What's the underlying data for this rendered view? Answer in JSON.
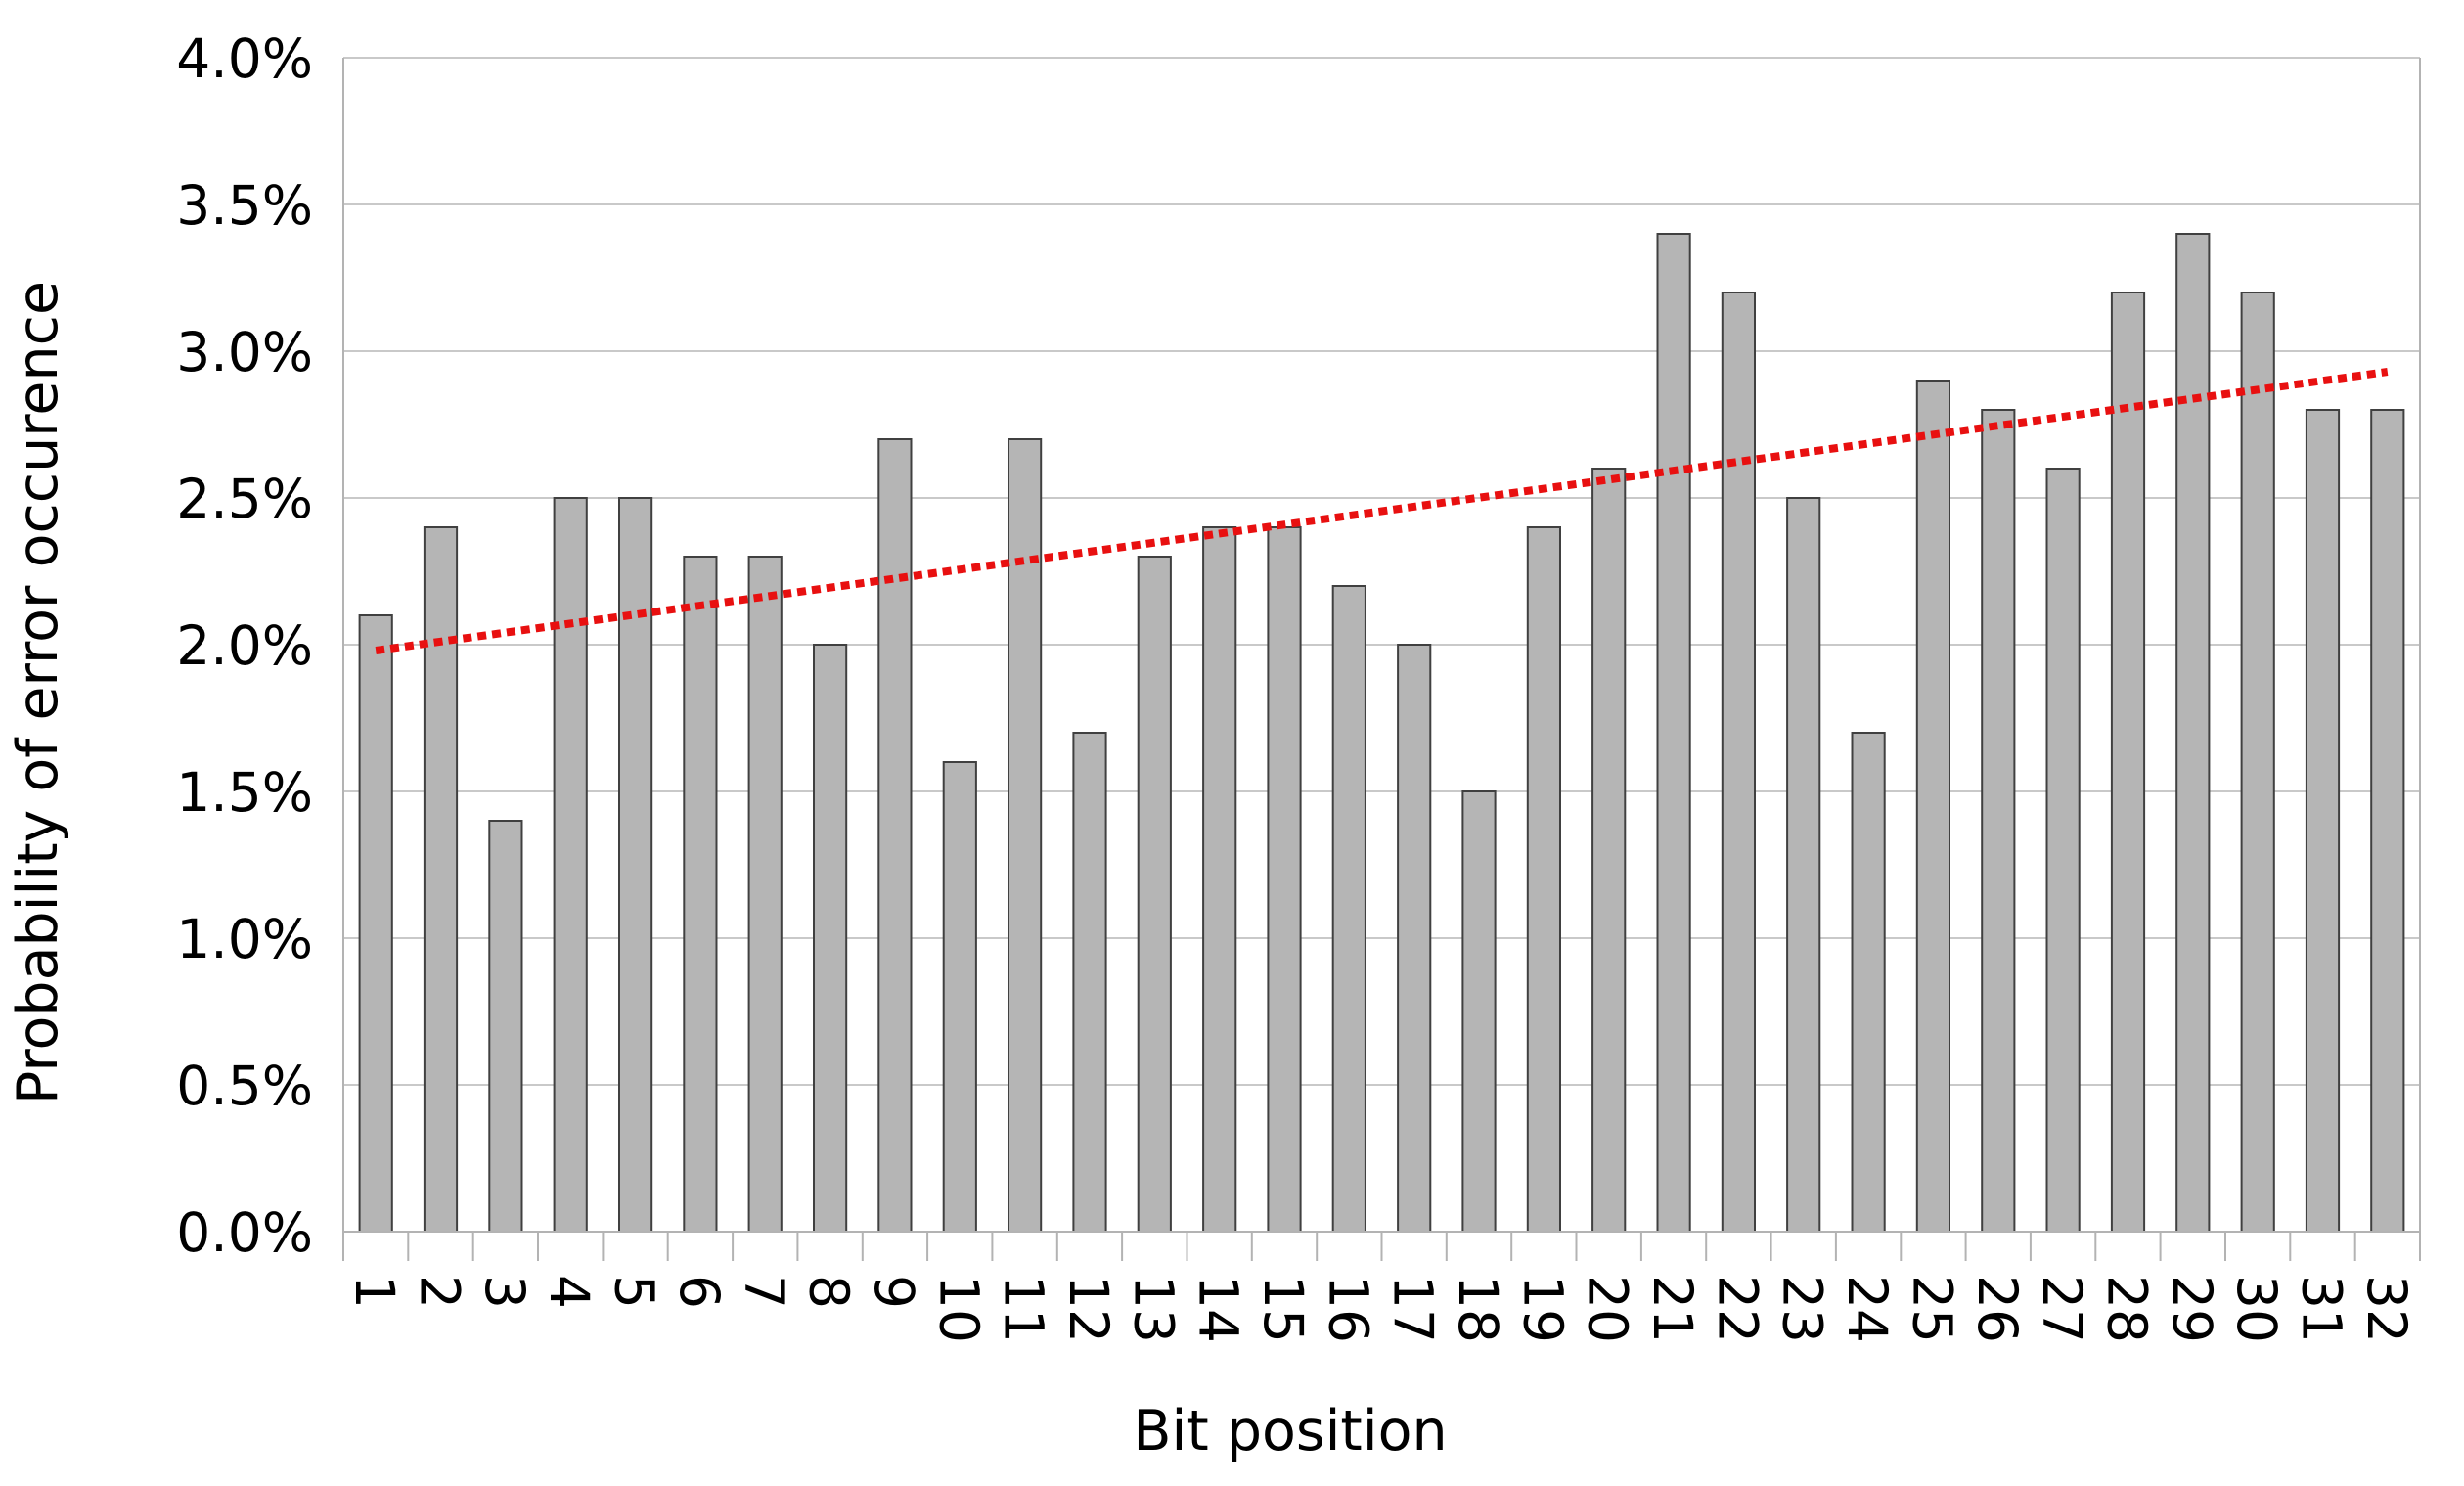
{
  "chart_data": {
    "type": "bar",
    "title": "",
    "xlabel": "Bit position",
    "ylabel": "Probability of error occurence",
    "categories": [
      "1",
      "2",
      "3",
      "4",
      "5",
      "6",
      "7",
      "8",
      "9",
      "10",
      "11",
      "12",
      "13",
      "14",
      "15",
      "16",
      "17",
      "18",
      "19",
      "20",
      "21",
      "22",
      "23",
      "24",
      "25",
      "26",
      "27",
      "28",
      "29",
      "30",
      "31",
      "32"
    ],
    "values": [
      2.1,
      2.4,
      1.4,
      2.5,
      2.5,
      2.3,
      2.3,
      2.0,
      2.7,
      1.6,
      2.7,
      1.7,
      2.3,
      2.4,
      2.4,
      2.2,
      2.0,
      1.5,
      2.4,
      2.6,
      3.4,
      3.2,
      2.5,
      1.7,
      2.9,
      2.8,
      2.6,
      3.2,
      3.4,
      3.2,
      2.8,
      2.8
    ],
    "value_unit": "%",
    "ylim": [
      0.0,
      4.0
    ],
    "y_tick_step": 0.5,
    "y_tick_labels": [
      "4.0%",
      "3.5%",
      "3.0%",
      "2.5%",
      "2.0%",
      "1.5%",
      "1.0%",
      "0.5%",
      "0.0%"
    ],
    "grid": true,
    "legend": "none",
    "bar_color": "#b5b5b5",
    "bar_border_color": "#404040",
    "gridline_color": "#c9c9c9",
    "axis_color": "#b3b3b3",
    "trendline": {
      "type": "linear",
      "style": "dotted",
      "color": "#e81010",
      "start_value": 1.98,
      "end_value": 2.93
    }
  }
}
